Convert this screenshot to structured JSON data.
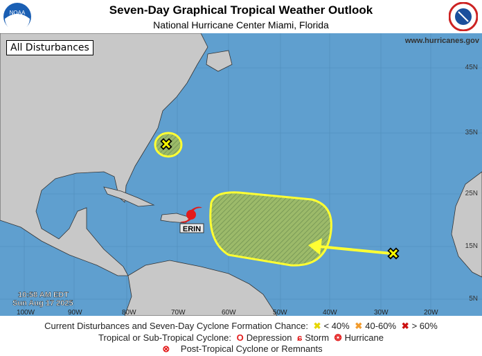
{
  "header": {
    "title": "Seven-Day Graphical Tropical Weather Outlook",
    "subtitle": "National Hurricane Center  Miami, Florida",
    "left_logo": "NOAA",
    "right_logo": "NATIONAL WEATHER SERVICE"
  },
  "map": {
    "panel_label": "All Disturbances",
    "website": "www.hurricanes.gov",
    "timestamp_time": "10:58 AM EDT",
    "timestamp_date": "Sun Aug 17 2025",
    "lat_labels": [
      "45N",
      "35N",
      "25N",
      "15N",
      "5N"
    ],
    "lon_labels": [
      "100W",
      "90W",
      "80W",
      "70W",
      "60W",
      "50W",
      "40W",
      "30W",
      "20W"
    ],
    "storm": {
      "name": "ERIN",
      "type": "Hurricane"
    },
    "disturbances": [
      {
        "chance": "< 40%",
        "color": "#ffff00"
      },
      {
        "chance": "< 40%",
        "color": "#ffff00"
      }
    ],
    "colors": {
      "water": "#5f9fcf",
      "land": "#c8c8c8",
      "area": "#9cba6a",
      "outline": "#ffff33"
    }
  },
  "legend": {
    "line1": "Current Disturbances and Seven-Day Cyclone Formation Chance:",
    "low": "< 40%",
    "mid": "40-60%",
    "high": "> 60%",
    "low_color": "#ffff00",
    "mid_color": "#f29b2d",
    "high_color": "#cc1111",
    "line2": "Tropical or Sub-Tropical Cyclone:",
    "depression": "Depression",
    "storm": "Storm",
    "hurricane": "Hurricane",
    "line3": "Post-Tropical Cyclone or Remnants"
  }
}
